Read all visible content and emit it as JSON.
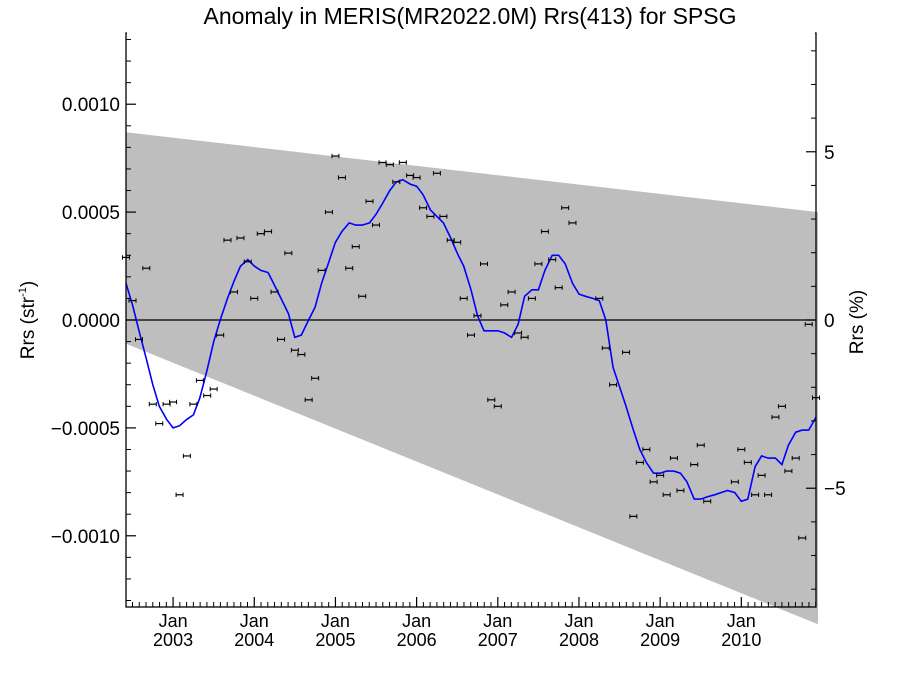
{
  "chart_data": {
    "type": "scatter",
    "title": "Anomaly in MERIS(MR2022.0M) Rrs(413) for SPSG",
    "ylabel_left": "Rrs (str",
    "ylabel_left_sup": "-1",
    "ylabel_left_close": ")",
    "ylabel_right": "Rrs (%)",
    "x_range": [
      2002.42,
      2010.92
    ],
    "ylim": [
      -0.00133,
      0.00133
    ],
    "ylim_right": [
      -8.53,
      8.53
    ],
    "left_ticks": [
      {
        "value": 0.001,
        "label": "0.0010"
      },
      {
        "value": 0.0005,
        "label": "0.0005"
      },
      {
        "value": 0.0,
        "label": "0.0000"
      },
      {
        "value": -0.0005,
        "label": "−0.0005"
      },
      {
        "value": -0.001,
        "label": "−0.0010"
      }
    ],
    "right_ticks": [
      {
        "value": 5,
        "label": "5"
      },
      {
        "value": 0,
        "label": "0"
      },
      {
        "value": -5,
        "label": "−5"
      }
    ],
    "x_ticks": [
      {
        "value": 2003.0,
        "month": "Jan",
        "year": "2003"
      },
      {
        "value": 2004.0,
        "month": "Jan",
        "year": "2004"
      },
      {
        "value": 2005.0,
        "month": "Jan",
        "year": "2005"
      },
      {
        "value": 2006.0,
        "month": "Jan",
        "year": "2006"
      },
      {
        "value": 2007.0,
        "month": "Jan",
        "year": "2007"
      },
      {
        "value": 2008.0,
        "month": "Jan",
        "year": "2008"
      },
      {
        "value": 2009.0,
        "month": "Jan",
        "year": "2009"
      },
      {
        "value": 2010.0,
        "month": "Jan",
        "year": "2010"
      }
    ],
    "band": {
      "upper_start": 0.00087,
      "upper_end": 0.0005,
      "lower_start": -0.00011,
      "lower_end": -0.00141,
      "color": "#bebebe"
    },
    "zero_line": true,
    "points": [
      {
        "x": 2002.42,
        "y": 0.00029
      },
      {
        "x": 2002.5,
        "y": 9e-05
      },
      {
        "x": 2002.58,
        "y": -9e-05
      },
      {
        "x": 2002.67,
        "y": 0.00024
      },
      {
        "x": 2002.75,
        "y": -0.00039
      },
      {
        "x": 2002.83,
        "y": -0.00048
      },
      {
        "x": 2002.92,
        "y": -0.00039
      },
      {
        "x": 2003.0,
        "y": -0.00038
      },
      {
        "x": 2003.08,
        "y": -0.00081
      },
      {
        "x": 2003.17,
        "y": -0.00063
      },
      {
        "x": 2003.25,
        "y": -0.00039
      },
      {
        "x": 2003.33,
        "y": -0.00028
      },
      {
        "x": 2003.42,
        "y": -0.00035
      },
      {
        "x": 2003.5,
        "y": -0.00032
      },
      {
        "x": 2003.58,
        "y": -7e-05
      },
      {
        "x": 2003.67,
        "y": 0.00037
      },
      {
        "x": 2003.75,
        "y": 0.00013
      },
      {
        "x": 2003.83,
        "y": 0.00038
      },
      {
        "x": 2003.92,
        "y": 0.00027
      },
      {
        "x": 2004.0,
        "y": 0.0001
      },
      {
        "x": 2004.08,
        "y": 0.0004
      },
      {
        "x": 2004.17,
        "y": 0.00041
      },
      {
        "x": 2004.25,
        "y": 0.00013
      },
      {
        "x": 2004.33,
        "y": -9e-05
      },
      {
        "x": 2004.42,
        "y": 0.00031
      },
      {
        "x": 2004.5,
        "y": -0.00014
      },
      {
        "x": 2004.58,
        "y": -0.00016
      },
      {
        "x": 2004.67,
        "y": -0.00037
      },
      {
        "x": 2004.75,
        "y": -0.00027
      },
      {
        "x": 2004.83,
        "y": 0.00023
      },
      {
        "x": 2004.92,
        "y": 0.0005
      },
      {
        "x": 2005.0,
        "y": 0.00076
      },
      {
        "x": 2005.08,
        "y": 0.00066
      },
      {
        "x": 2005.17,
        "y": 0.00024
      },
      {
        "x": 2005.25,
        "y": 0.00034
      },
      {
        "x": 2005.33,
        "y": 0.00011
      },
      {
        "x": 2005.42,
        "y": 0.00055
      },
      {
        "x": 2005.5,
        "y": 0.00044
      },
      {
        "x": 2005.58,
        "y": 0.00073
      },
      {
        "x": 2005.67,
        "y": 0.00072
      },
      {
        "x": 2005.75,
        "y": 0.00064
      },
      {
        "x": 2005.83,
        "y": 0.00073
      },
      {
        "x": 2005.92,
        "y": 0.00067
      },
      {
        "x": 2006.0,
        "y": 0.00066
      },
      {
        "x": 2006.08,
        "y": 0.00052
      },
      {
        "x": 2006.17,
        "y": 0.00048
      },
      {
        "x": 2006.25,
        "y": 0.00068
      },
      {
        "x": 2006.33,
        "y": 0.00048
      },
      {
        "x": 2006.42,
        "y": 0.00037
      },
      {
        "x": 2006.5,
        "y": 0.00036
      },
      {
        "x": 2006.58,
        "y": 0.0001
      },
      {
        "x": 2006.67,
        "y": -7e-05
      },
      {
        "x": 2006.75,
        "y": 2e-05
      },
      {
        "x": 2006.83,
        "y": 0.00026
      },
      {
        "x": 2006.92,
        "y": -0.00037
      },
      {
        "x": 2007.0,
        "y": -0.0004
      },
      {
        "x": 2007.08,
        "y": 7e-05
      },
      {
        "x": 2007.17,
        "y": 0.00013
      },
      {
        "x": 2007.25,
        "y": -6e-05
      },
      {
        "x": 2007.33,
        "y": -8e-05
      },
      {
        "x": 2007.42,
        "y": 0.0001
      },
      {
        "x": 2007.5,
        "y": 0.00026
      },
      {
        "x": 2007.58,
        "y": 0.00041
      },
      {
        "x": 2007.67,
        "y": 0.00028
      },
      {
        "x": 2007.75,
        "y": 0.00015
      },
      {
        "x": 2007.83,
        "y": 0.00052
      },
      {
        "x": 2007.92,
        "y": 0.00045
      },
      {
        "x": 2008.25,
        "y": 0.0001
      },
      {
        "x": 2008.33,
        "y": -0.00013
      },
      {
        "x": 2008.42,
        "y": -0.0003
      },
      {
        "x": 2008.58,
        "y": -0.00015
      },
      {
        "x": 2008.67,
        "y": -0.00091
      },
      {
        "x": 2008.75,
        "y": -0.00066
      },
      {
        "x": 2008.83,
        "y": -0.0006
      },
      {
        "x": 2008.92,
        "y": -0.00075
      },
      {
        "x": 2009.0,
        "y": -0.00072
      },
      {
        "x": 2009.08,
        "y": -0.00081
      },
      {
        "x": 2009.17,
        "y": -0.00064
      },
      {
        "x": 2009.25,
        "y": -0.00079
      },
      {
        "x": 2009.42,
        "y": -0.00067
      },
      {
        "x": 2009.5,
        "y": -0.00058
      },
      {
        "x": 2009.58,
        "y": -0.00084
      },
      {
        "x": 2009.92,
        "y": -0.00075
      },
      {
        "x": 2010.0,
        "y": -0.0006
      },
      {
        "x": 2010.08,
        "y": -0.00066
      },
      {
        "x": 2010.17,
        "y": -0.00081
      },
      {
        "x": 2010.25,
        "y": -0.00072
      },
      {
        "x": 2010.33,
        "y": -0.00081
      },
      {
        "x": 2010.42,
        "y": -0.00045
      },
      {
        "x": 2010.5,
        "y": -0.0004
      },
      {
        "x": 2010.58,
        "y": -0.0007
      },
      {
        "x": 2010.67,
        "y": -0.00064
      },
      {
        "x": 2010.75,
        "y": -0.00101
      },
      {
        "x": 2010.83,
        "y": -2e-05
      },
      {
        "x": 2010.92,
        "y": -0.00036
      }
    ],
    "series": [
      {
        "color": "#0000ff",
        "x": [
          2002.42,
          2002.5,
          2002.58,
          2002.67,
          2002.75,
          2002.83,
          2002.92,
          2003.0,
          2003.08,
          2003.17,
          2003.25,
          2003.33,
          2003.42,
          2003.5,
          2003.58,
          2003.67,
          2003.75,
          2003.83,
          2003.92,
          2004.0,
          2004.08,
          2004.17,
          2004.25,
          2004.33,
          2004.42,
          2004.5,
          2004.58,
          2004.67,
          2004.75,
          2004.83,
          2004.92,
          2005.0,
          2005.08,
          2005.17,
          2005.25,
          2005.33,
          2005.42,
          2005.5,
          2005.58,
          2005.67,
          2005.75,
          2005.83,
          2005.92,
          2006.0,
          2006.08,
          2006.17,
          2006.25,
          2006.33,
          2006.42,
          2006.5,
          2006.58,
          2006.67,
          2006.75,
          2006.83,
          2006.92,
          2007.0,
          2007.08,
          2007.17,
          2007.25,
          2007.33,
          2007.42,
          2007.5,
          2007.58,
          2007.67,
          2007.75,
          2007.83,
          2007.92,
          2008.0,
          2008.08,
          2008.17,
          2008.25,
          2008.33,
          2008.42,
          2008.5,
          2008.58,
          2008.67,
          2008.75,
          2008.83,
          2008.92,
          2009.0,
          2009.08,
          2009.17,
          2009.25,
          2009.33,
          2009.42,
          2009.5,
          2009.58,
          2009.67,
          2009.75,
          2009.83,
          2009.92,
          2010.0,
          2010.08,
          2010.17,
          2010.25,
          2010.33,
          2010.42,
          2010.5,
          2010.58,
          2010.67,
          2010.75,
          2010.83,
          2010.92
        ],
        "y": [
          0.00017,
          7e-05,
          -5e-05,
          -0.00018,
          -0.0003,
          -0.0004,
          -0.00046,
          -0.0005,
          -0.00049,
          -0.00046,
          -0.00044,
          -0.00036,
          -0.00023,
          -0.0001,
          0.0,
          0.0001,
          0.00018,
          0.00025,
          0.00028,
          0.00025,
          0.00023,
          0.00022,
          0.00016,
          0.0001,
          3e-05,
          -8e-05,
          -7e-05,
          0.0,
          6e-05,
          0.00017,
          0.00027,
          0.00036,
          0.00041,
          0.00045,
          0.00044,
          0.00044,
          0.00045,
          0.00049,
          0.00054,
          0.0006,
          0.00064,
          0.00065,
          0.00063,
          0.00062,
          0.00058,
          0.00051,
          0.00048,
          0.00045,
          0.00038,
          0.00031,
          0.00025,
          0.00014,
          2e-05,
          -5e-05,
          -5e-05,
          -5e-05,
          -6e-05,
          -8e-05,
          -2e-05,
          0.00011,
          0.00014,
          0.00014,
          0.00023,
          0.0003,
          0.0003,
          0.00026,
          0.00017,
          0.00012,
          0.00011,
          0.0001,
          9e-05,
          0.0,
          -0.00022,
          -0.00031,
          -0.0004,
          -0.00051,
          -0.0006,
          -0.00066,
          -0.00071,
          -0.00071,
          -0.0007,
          -0.0007,
          -0.00071,
          -0.00075,
          -0.00083,
          -0.00083,
          -0.00082,
          -0.00081,
          -0.0008,
          -0.00079,
          -0.0008,
          -0.00084,
          -0.00083,
          -0.00068,
          -0.00063,
          -0.00064,
          -0.00064,
          -0.00067,
          -0.00058,
          -0.00052,
          -0.00051,
          -0.00051,
          -0.00045
        ]
      }
    ]
  }
}
